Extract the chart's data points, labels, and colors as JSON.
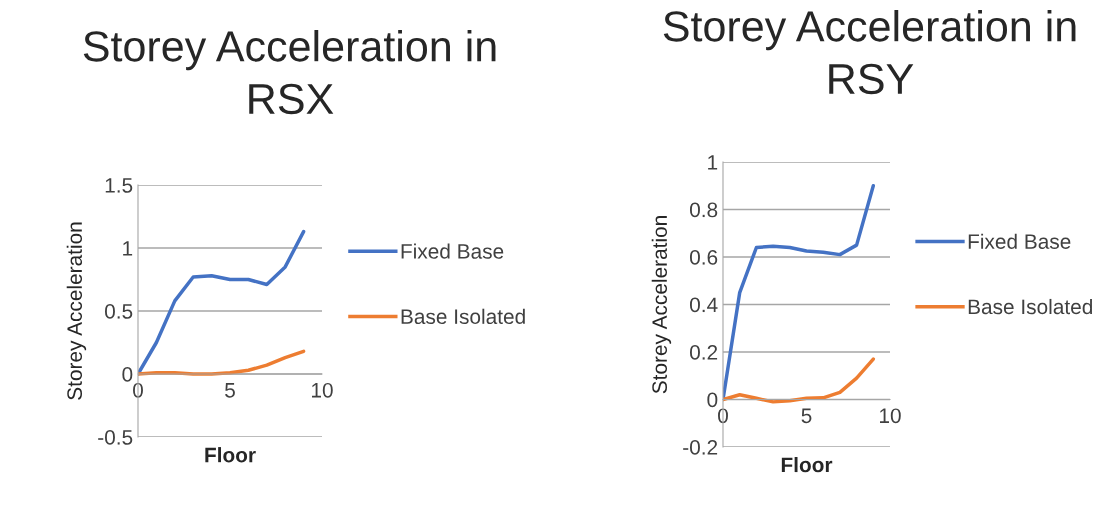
{
  "chart_data": [
    {
      "type": "line",
      "title": "Storey Acceleration in RSX",
      "xlabel": "Floor",
      "ylabel": "Storey Acceleration",
      "x": [
        0,
        1,
        2,
        3,
        4,
        5,
        6,
        7,
        8,
        9
      ],
      "series": [
        {
          "name": "Fixed Base",
          "color": "#4472c4",
          "values": [
            0,
            0.25,
            0.58,
            0.77,
            0.78,
            0.75,
            0.75,
            0.71,
            0.85,
            1.13
          ]
        },
        {
          "name": "Base Isolated",
          "color": "#ed7d31",
          "values": [
            0,
            0.01,
            0.01,
            0,
            0,
            0.01,
            0.03,
            0.07,
            0.13,
            0.18
          ]
        }
      ],
      "xlim": [
        0,
        10
      ],
      "xticks": [
        0,
        5,
        10
      ],
      "ylim": [
        -0.5,
        1.5
      ],
      "yticks": [
        -0.5,
        0,
        0.5,
        1,
        1.5
      ],
      "grid": "y",
      "legend": "right",
      "marker": "none",
      "line_style": "solid"
    },
    {
      "type": "line",
      "title": "Storey Acceleration in RSY",
      "xlabel": "Floor",
      "ylabel": "Storey Acceleration",
      "x": [
        0,
        1,
        2,
        3,
        4,
        5,
        6,
        7,
        8,
        9
      ],
      "series": [
        {
          "name": "Fixed Base",
          "color": "#4472c4",
          "values": [
            0,
            0.45,
            0.64,
            0.645,
            0.64,
            0.625,
            0.62,
            0.61,
            0.65,
            0.9
          ]
        },
        {
          "name": "Base Isolated",
          "color": "#ed7d31",
          "values": [
            0,
            0.02,
            0.005,
            -0.01,
            -0.005,
            0.005,
            0.007,
            0.03,
            0.09,
            0.17
          ]
        }
      ],
      "xlim": [
        0,
        10
      ],
      "xticks": [
        0,
        5,
        10
      ],
      "ylim": [
        -0.2,
        1
      ],
      "yticks": [
        -0.2,
        0,
        0.2,
        0.4,
        0.6,
        0.8,
        1
      ],
      "grid": "y",
      "legend": "right",
      "marker": "none",
      "line_style": "solid"
    }
  ]
}
